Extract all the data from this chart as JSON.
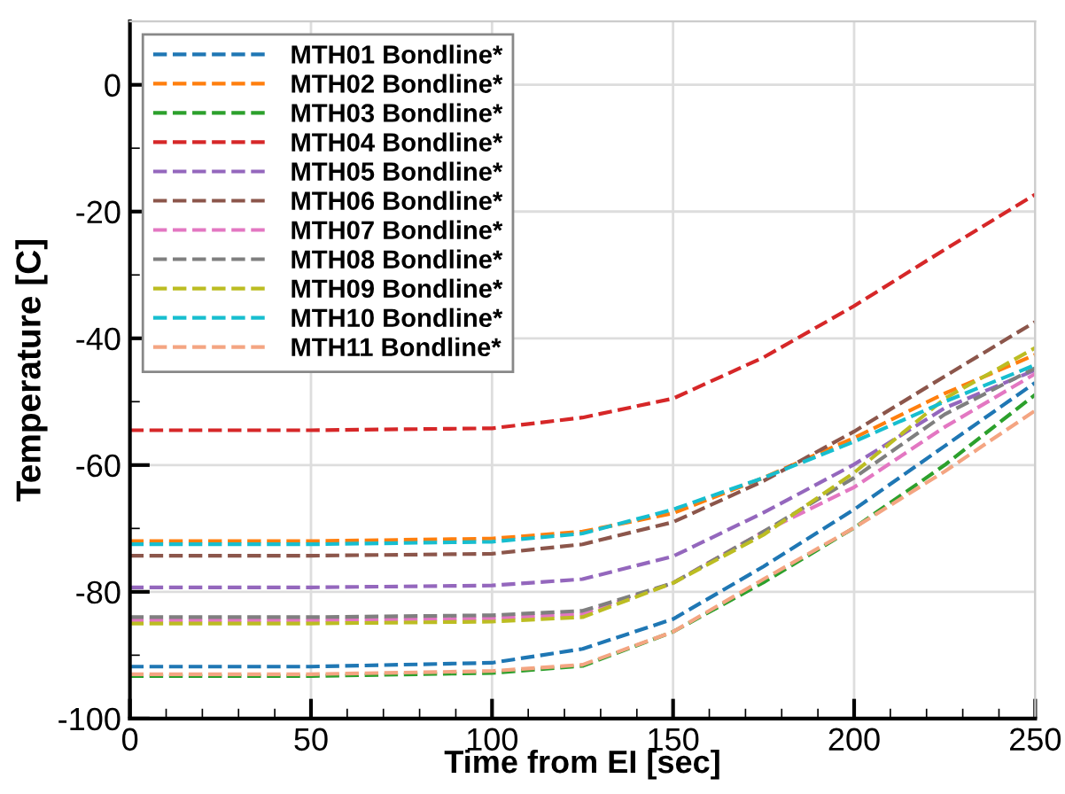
{
  "chart_data": {
    "type": "line",
    "xlabel": "Time from EI [sec]",
    "ylabel": "Temperature [C]",
    "x": [
      0,
      50,
      100,
      125,
      150,
      175,
      200,
      225,
      250
    ],
    "xlim": [
      0,
      250
    ],
    "xticks": [
      0,
      50,
      100,
      150,
      200,
      250
    ],
    "ylim": [
      -100,
      10
    ],
    "yticks": [
      -100,
      -80,
      -60,
      -40,
      -20,
      0
    ],
    "grid": true,
    "legend": "top left",
    "line_style": "dashed",
    "marker": "none",
    "series": [
      {
        "name": "MTH01 Bondline*",
        "color": "#1f77b4",
        "values": [
          -91.8,
          -91.8,
          -91.2,
          -89,
          -84.3,
          -76,
          -67,
          -57,
          -47
        ]
      },
      {
        "name": "MTH02 Bondline*",
        "color": "#ff7f0e",
        "values": [
          -72,
          -72,
          -71.6,
          -70.5,
          -67.6,
          -62,
          -55.7,
          -48.7,
          -42.6
        ]
      },
      {
        "name": "MTH03 Bondline*",
        "color": "#2ca02c",
        "values": [
          -93.3,
          -93.3,
          -92.8,
          -91.7,
          -86.3,
          -78.5,
          -69.9,
          -60,
          -48.9
        ]
      },
      {
        "name": "MTH04 Bondline*",
        "color": "#d62728",
        "values": [
          -54.5,
          -54.5,
          -54.2,
          -52.5,
          -49.5,
          -43,
          -34.9,
          -26,
          -17.3
        ]
      },
      {
        "name": "MTH05 Bondline*",
        "color": "#9467bd",
        "values": [
          -79.3,
          -79.3,
          -79,
          -78,
          -74.4,
          -67.5,
          -59.9,
          -51,
          -45
        ]
      },
      {
        "name": "MTH06 Bondline*",
        "color": "#8c564b",
        "values": [
          -74.3,
          -74.3,
          -74,
          -72.5,
          -69,
          -62.5,
          -54.7,
          -46,
          -37.4
        ]
      },
      {
        "name": "MTH07 Bondline*",
        "color": "#e377c2",
        "values": [
          -84.5,
          -84.5,
          -84.2,
          -83.5,
          -78.6,
          -70.5,
          -63.5,
          -54,
          -45.6
        ]
      },
      {
        "name": "MTH08 Bondline*",
        "color": "#7f7f7f",
        "values": [
          -84,
          -84,
          -83.7,
          -83,
          -78.6,
          -70.5,
          -62,
          -52,
          -44.7
        ]
      },
      {
        "name": "MTH09 Bondline*",
        "color": "#bcbd22",
        "values": [
          -85,
          -85,
          -84.7,
          -84,
          -78.6,
          -71,
          -61.2,
          -49.5,
          -41.5
        ]
      },
      {
        "name": "MTH10 Bondline*",
        "color": "#17becf",
        "values": [
          -72.5,
          -72.5,
          -72.1,
          -70.8,
          -67,
          -62,
          -56.3,
          -50,
          -44.2
        ]
      },
      {
        "name": "MTH11 Bondline*",
        "color": "#f4a582",
        "values": [
          -93,
          -93,
          -92.5,
          -91.5,
          -86.3,
          -78,
          -69.9,
          -61,
          -51.4
        ]
      }
    ]
  }
}
